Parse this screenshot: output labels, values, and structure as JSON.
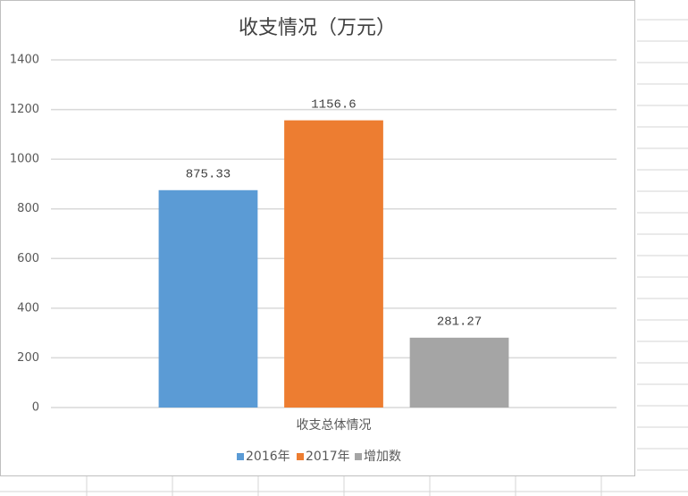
{
  "chart_data": {
    "type": "bar",
    "title": "收支情况（万元）",
    "categories": [
      "收支总体情况"
    ],
    "series": [
      {
        "name": "2016年",
        "color": "#5b9bd5",
        "values": [
          875.33
        ]
      },
      {
        "name": "2017年",
        "color": "#ed7d31",
        "values": [
          1156.6
        ]
      },
      {
        "name": "增加数",
        "color": "#a5a5a5",
        "values": [
          281.27
        ]
      }
    ],
    "ylim": [
      0,
      1400
    ],
    "yticks": [
      0,
      200,
      400,
      600,
      800,
      1000,
      1200,
      1400
    ],
    "grid": true,
    "legend": "bottom",
    "data_labels": true
  }
}
